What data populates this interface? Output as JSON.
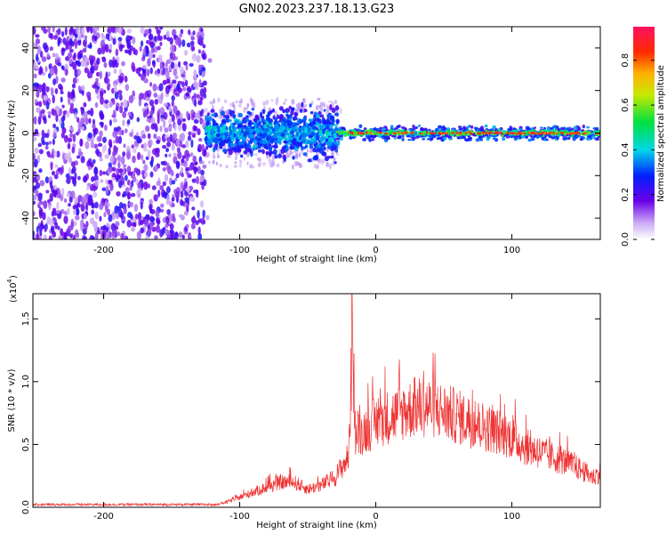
{
  "title": "GN02.2023.237.18.13.G23",
  "chart_data": [
    {
      "type": "heatmap",
      "xlabel": "Height of straight line (km)",
      "ylabel": "Frequency (Hz)",
      "xlim": [
        -252,
        165
      ],
      "ylim": [
        -50,
        50
      ],
      "xticks": [
        -200,
        -100,
        0,
        100
      ],
      "yticks": [
        -40,
        -20,
        0,
        20,
        40
      ],
      "colorbar": {
        "label": "Normalized spectral amplitude",
        "range": [
          0.0,
          0.95
        ],
        "ticks": [
          "0.0",
          "0.2",
          "0.4",
          "0.6",
          "0.8"
        ]
      },
      "regions": [
        {
          "x": [
            -252,
            -125
          ],
          "freq_spread": 50,
          "level": "low, scattered noise (0.05–0.3)"
        },
        {
          "x": [
            -125,
            -28
          ],
          "freq_spread": 10,
          "level": "moderate (0.2–0.45)"
        },
        {
          "x": [
            -28,
            165
          ],
          "freq_center": 0,
          "freq_spread": 3,
          "level": "strong narrow line (0.5–0.95)"
        }
      ]
    },
    {
      "type": "line",
      "xlabel": "Height of straight line (km)",
      "ylabel": "SNR (10 * v/v)",
      "yscale_label": "(x10",
      "yscale_exp": "4",
      "xlim": [
        -252,
        165
      ],
      "ylim": [
        0,
        1.7
      ],
      "xticks": [
        -200,
        -100,
        0,
        100
      ],
      "yticks": [
        "0.0",
        "0.5",
        "1.0",
        "1.5"
      ],
      "series": [
        {
          "color": "#ee3333",
          "envelope_x": [
            -252,
            -120,
            -110,
            -100,
            -90,
            -80,
            -70,
            -60,
            -50,
            -40,
            -30,
            -20,
            -17,
            -15,
            -10,
            0,
            10,
            20,
            30,
            40,
            50,
            60,
            70,
            80,
            90,
            100,
            110,
            120,
            130,
            140,
            150,
            160,
            165
          ],
          "envelope_y": [
            0.02,
            0.02,
            0.05,
            0.1,
            0.15,
            0.2,
            0.25,
            0.25,
            0.18,
            0.22,
            0.3,
            0.5,
            1.7,
            0.7,
            0.75,
            0.85,
            0.9,
            0.95,
            1.0,
            1.0,
            0.95,
            0.9,
            0.85,
            0.8,
            0.75,
            0.7,
            0.6,
            0.55,
            0.5,
            0.45,
            0.38,
            0.3,
            0.35
          ]
        }
      ]
    }
  ]
}
